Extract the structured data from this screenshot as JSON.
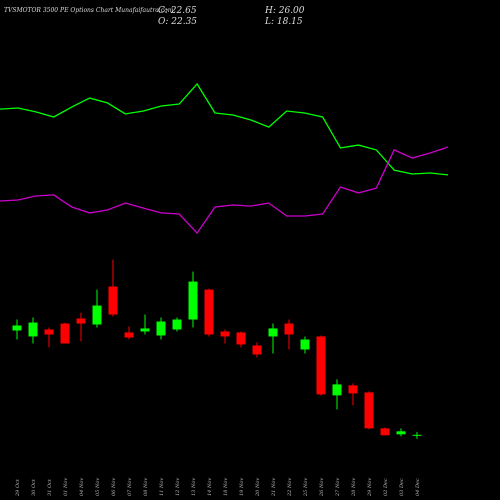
{
  "chart_data": {
    "type": "candlestick",
    "title": "TVSMOTOR 3500 PE Options Chart Munafaifautra.com",
    "stats": [
      "C: 22.65",
      "H: 26.00",
      "O: 22.35",
      "L: 18.15"
    ],
    "categories": [
      "29 Oct",
      "30 Oct",
      "31 Oct",
      "01 Nov",
      "04 Nov",
      "05 Nov",
      "06 Nov",
      "07 Nov",
      "08 Nov",
      "11 Nov",
      "12 Nov",
      "13 Nov",
      "14 Nov",
      "18 Nov",
      "19 Nov",
      "20 Nov",
      "21 Nov",
      "22 Nov",
      "25 Nov",
      "26 Nov",
      "27 Nov",
      "28 Nov",
      "29 Nov",
      "02 Dec",
      "03 Dec",
      "04 Dec"
    ],
    "open": [
      139.7,
      133.0,
      140.8,
      147.5,
      153.1,
      146.4,
      189.0,
      137.5,
      138.6,
      134.1,
      140.8,
      152.0,
      185.6,
      138.6,
      137.5,
      122.9,
      133.0,
      147.5,
      118.4,
      133.0,
      66.9,
      78.1,
      70.2,
      29.9,
      23.2,
      22.35
    ],
    "high": [
      152.0,
      154.3,
      143.1,
      148.5,
      159.8,
      185.6,
      219.2,
      144.2,
      157.6,
      154.3,
      154.3,
      205.8,
      186.7,
      140.8,
      138.6,
      126.3,
      147.5,
      152.0,
      133.0,
      134.1,
      84.8,
      80.3,
      71.4,
      31.0,
      29.9,
      26.0
    ],
    "low": [
      129.6,
      125.1,
      120.7,
      125.1,
      127.4,
      143.1,
      155.4,
      129.6,
      135.2,
      129.6,
      138.6,
      143.1,
      133.0,
      125.1,
      120.7,
      109.4,
      113.9,
      118.4,
      113.9,
      66.9,
      51.2,
      55.7,
      28.8,
      22.1,
      21.0,
      18.15
    ],
    "close": [
      145.3,
      148.6,
      135.2,
      125.1,
      147.5,
      167.7,
      157.6,
      131.8,
      142.0,
      149.8,
      152.0,
      194.6,
      135.2,
      133.0,
      124.0,
      112.8,
      142.0,
      135.2,
      129.6,
      68.0,
      79.2,
      69.1,
      29.9,
      22.1,
      26.6,
      22.65
    ],
    "up_color": "#00ff00",
    "down_color": "#ff0000",
    "ylim": [
      0,
      230
    ],
    "lines": [
      {
        "color": "#00ff00",
        "values": [
          78.3,
          78.9,
          76.7,
          73.9,
          79.4,
          84.4,
          81.7,
          75.6,
          77.2,
          80.0,
          81.1,
          92.2,
          76.1,
          75.0,
          72.2,
          68.3,
          77.2,
          76.1,
          73.9,
          56.7,
          58.3,
          55.6,
          44.4,
          42.2,
          42.8,
          41.7
        ]
      },
      {
        "color": "#cc00cc",
        "values": [
          27.2,
          27.8,
          30.0,
          30.6,
          23.9,
          20.6,
          22.2,
          26.1,
          23.3,
          20.6,
          20.0,
          9.4,
          23.9,
          25.0,
          24.4,
          26.1,
          18.9,
          18.9,
          20.0,
          35.0,
          31.7,
          34.4,
          55.6,
          51.1,
          53.9,
          57.2
        ]
      }
    ],
    "line_ylim": [
      0,
      100
    ]
  }
}
